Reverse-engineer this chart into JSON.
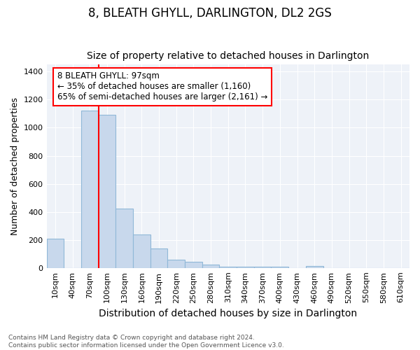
{
  "title": "8, BLEATH GHYLL, DARLINGTON, DL2 2GS",
  "subtitle": "Size of property relative to detached houses in Darlington",
  "xlabel": "Distribution of detached houses by size in Darlington",
  "ylabel": "Number of detached properties",
  "categories": [
    "10sqm",
    "40sqm",
    "70sqm",
    "100sqm",
    "130sqm",
    "160sqm",
    "190sqm",
    "220sqm",
    "250sqm",
    "280sqm",
    "310sqm",
    "340sqm",
    "370sqm",
    "400sqm",
    "430sqm",
    "460sqm",
    "490sqm",
    "520sqm",
    "550sqm",
    "580sqm",
    "610sqm"
  ],
  "values": [
    210,
    0,
    1120,
    1090,
    425,
    240,
    140,
    60,
    45,
    25,
    10,
    10,
    10,
    10,
    0,
    15,
    0,
    0,
    0,
    0,
    0
  ],
  "bar_color": "#c8d8ec",
  "bar_edge_color": "#90b8d8",
  "vline_index": 3,
  "annotation_line1": "8 BLEATH GHYLL: 97sqm",
  "annotation_line2": "← 35% of detached houses are smaller (1,160)",
  "annotation_line3": "65% of semi-detached houses are larger (2,161) →",
  "annotation_box_color": "white",
  "annotation_box_edge": "red",
  "vline_color": "red",
  "ylim": [
    0,
    1450
  ],
  "yticks": [
    0,
    200,
    400,
    600,
    800,
    1000,
    1200,
    1400
  ],
  "background_color": "#eef2f8",
  "footer_text": "Contains HM Land Registry data © Crown copyright and database right 2024.\nContains public sector information licensed under the Open Government Licence v3.0.",
  "title_fontsize": 12,
  "subtitle_fontsize": 10,
  "tick_fontsize": 8,
  "ylabel_fontsize": 9,
  "xlabel_fontsize": 10,
  "footer_fontsize": 6.5
}
